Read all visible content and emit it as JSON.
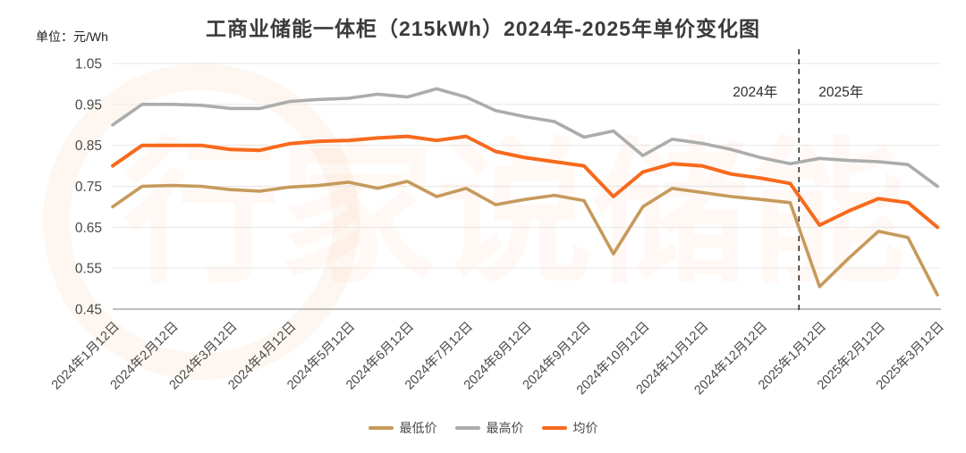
{
  "title": "工商业储能一体柜（215kWh）2024年-2025年单价变化图",
  "unit_label": "单位：元/Wh",
  "annotations": {
    "left_year": "2024年",
    "right_year": "2025年"
  },
  "legend": [
    {
      "key": "min",
      "label": "最低价",
      "color": "#C69A5C"
    },
    {
      "key": "max",
      "label": "最高价",
      "color": "#ACACAC"
    },
    {
      "key": "avg",
      "label": "均价",
      "color": "#F7691C"
    }
  ],
  "watermark_text": "行家说储能",
  "chart_data": {
    "type": "line",
    "ylabel": "元/Wh",
    "ylim": [
      0.45,
      1.05
    ],
    "yticks": [
      "1.05",
      "0.95",
      "0.85",
      "0.75",
      "0.65",
      "0.55",
      "0.45"
    ],
    "grid": true,
    "legend_position": "bottom",
    "n_points": 29,
    "label_every": 2,
    "tick_labels": [
      "2024年1月12日",
      "2024年2月12日",
      "2024年3月12日",
      "2024年4月12日",
      "2024年5月12日",
      "2024年6月12日",
      "2024年7月12日",
      "2024年8月12日",
      "2024年9月12日",
      "2024年10月12日",
      "2024年11月12日",
      "2024年12月12日",
      "2025年1月12日",
      "2025年2月12日",
      "2025年3月12日"
    ],
    "divider_between_indices": [
      23,
      24
    ],
    "series": [
      {
        "key": "min",
        "name": "最低价",
        "color": "#C69A5C",
        "values": [
          0.7,
          0.75,
          0.752,
          0.75,
          0.742,
          0.738,
          0.748,
          0.752,
          0.76,
          0.745,
          0.762,
          0.725,
          0.745,
          0.705,
          0.718,
          0.728,
          0.715,
          0.585,
          0.7,
          0.745,
          0.735,
          0.725,
          0.718,
          0.71,
          0.505,
          0.575,
          0.64,
          0.625,
          0.485
        ]
      },
      {
        "key": "max",
        "name": "最高价",
        "color": "#ACACAC",
        "values": [
          0.9,
          0.95,
          0.95,
          0.948,
          0.94,
          0.94,
          0.957,
          0.962,
          0.965,
          0.975,
          0.968,
          0.988,
          0.968,
          0.935,
          0.92,
          0.908,
          0.87,
          0.885,
          0.825,
          0.865,
          0.855,
          0.84,
          0.82,
          0.805,
          0.818,
          0.813,
          0.81,
          0.803,
          0.75
        ]
      },
      {
        "key": "avg",
        "name": "均价",
        "color": "#F7691C",
        "values": [
          0.8,
          0.85,
          0.85,
          0.85,
          0.84,
          0.838,
          0.854,
          0.86,
          0.862,
          0.868,
          0.872,
          0.862,
          0.872,
          0.835,
          0.82,
          0.81,
          0.8,
          0.725,
          0.785,
          0.805,
          0.8,
          0.78,
          0.77,
          0.757,
          0.655,
          0.69,
          0.72,
          0.71,
          0.65
        ]
      }
    ]
  }
}
